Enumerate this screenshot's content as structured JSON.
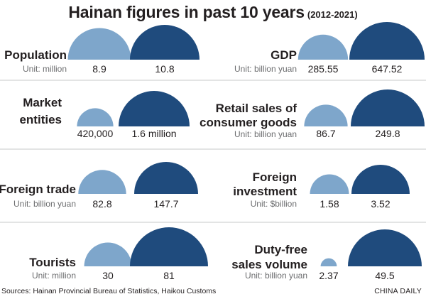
{
  "header": {
    "title": "Hainan figures in past 10 years",
    "subtitle": "(2012-2021)"
  },
  "colors": {
    "light": "#7ea6cb",
    "dark": "#1f4b7d",
    "text": "#231f20",
    "unit": "#6d6e70",
    "divider": "#c7c8ca"
  },
  "chart_data": [
    {
      "type": "semicircle-comparison",
      "label": "Population",
      "unit": "Unit: million",
      "values": [
        8.9,
        10.8
      ],
      "value_labels": [
        "8.9",
        "10.8"
      ]
    },
    {
      "type": "semicircle-comparison",
      "label": "GDP",
      "unit": "Unit: billion yuan",
      "values": [
        285.55,
        647.52
      ],
      "value_labels": [
        "285.55",
        "647.52"
      ]
    },
    {
      "type": "semicircle-comparison",
      "label": "Market entities",
      "unit": "",
      "values": [
        420000,
        1600000
      ],
      "value_labels": [
        "420,000",
        "1.6 million"
      ]
    },
    {
      "type": "semicircle-comparison",
      "label": "Retail sales of consumer goods",
      "unit": "Unit: billion yuan",
      "values": [
        86.7,
        249.8
      ],
      "value_labels": [
        "86.7",
        "249.8"
      ]
    },
    {
      "type": "semicircle-comparison",
      "label": "Foreign trade",
      "unit": "Unit: billion yuan",
      "values": [
        82.8,
        147.7
      ],
      "value_labels": [
        "82.8",
        "147.7"
      ]
    },
    {
      "type": "semicircle-comparison",
      "label": "Foreign investment",
      "unit": "Unit: $billion",
      "values": [
        1.58,
        3.52
      ],
      "value_labels": [
        "1.58",
        "3.52"
      ]
    },
    {
      "type": "semicircle-comparison",
      "label": "Tourists",
      "unit": "Unit: million",
      "values": [
        30,
        81
      ],
      "value_labels": [
        "30",
        "81"
      ]
    },
    {
      "type": "semicircle-comparison",
      "label": "Duty-free sales volume",
      "unit": "Unit: billion yuan",
      "values": [
        2.37,
        49.5
      ],
      "value_labels": [
        "2.37",
        "49.5"
      ]
    }
  ],
  "footer": {
    "source": "Sources: Hainan Provincial Bureau of Statistics, Haikou Customs",
    "credit": "CHINA DAILY"
  }
}
